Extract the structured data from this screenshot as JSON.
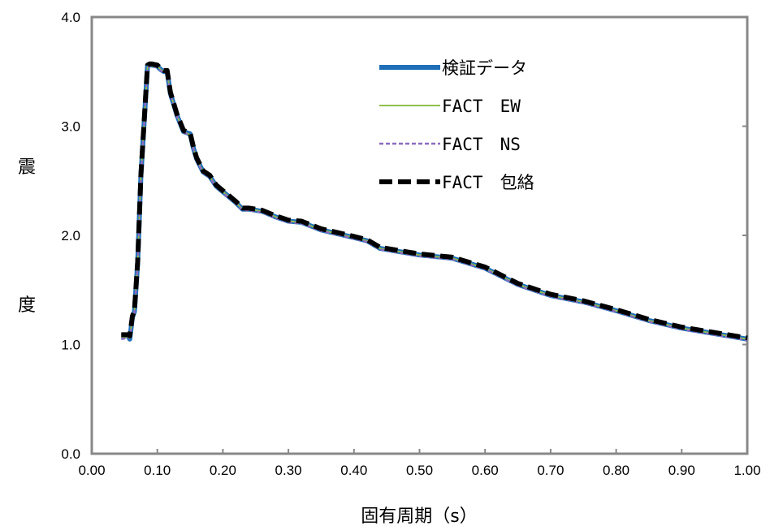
{
  "chart_data": {
    "type": "line",
    "xlabel": "固有周期（s）",
    "ylabel": "震度",
    "xlim": [
      0.0,
      1.0
    ],
    "ylim": [
      0.0,
      4.0
    ],
    "x_ticks": [
      "0.00",
      "0.10",
      "0.20",
      "0.30",
      "0.40",
      "0.50",
      "0.60",
      "0.70",
      "0.80",
      "0.90",
      "1.00"
    ],
    "y_ticks": [
      "0.0",
      "1.0",
      "2.0",
      "3.0",
      "4.0"
    ],
    "grid": false,
    "legend_position": "top-right",
    "series": [
      {
        "name": "検証データ",
        "color": "#1f6fb8",
        "style": "solid-thick",
        "x": [
          0.045,
          0.055,
          0.058,
          0.062,
          0.065,
          0.07,
          0.075,
          0.08,
          0.085,
          0.088,
          0.092,
          0.1,
          0.105,
          0.11,
          0.115,
          0.12,
          0.125,
          0.13,
          0.14,
          0.15,
          0.155,
          0.16,
          0.17,
          0.18,
          0.19,
          0.2,
          0.21,
          0.22,
          0.23,
          0.24,
          0.26,
          0.28,
          0.3,
          0.32,
          0.35,
          0.4,
          0.42,
          0.44,
          0.46,
          0.5,
          0.55,
          0.6,
          0.65,
          0.7,
          0.75,
          0.8,
          0.85,
          0.9,
          0.95,
          1.0
        ],
        "y": [
          1.08,
          1.08,
          1.05,
          1.25,
          1.3,
          1.75,
          2.55,
          3.05,
          3.55,
          3.56,
          3.56,
          3.55,
          3.52,
          3.5,
          3.5,
          3.3,
          3.2,
          3.1,
          2.95,
          2.93,
          2.8,
          2.7,
          2.58,
          2.54,
          2.45,
          2.4,
          2.35,
          2.3,
          2.24,
          2.24,
          2.22,
          2.17,
          2.13,
          2.12,
          2.05,
          1.98,
          1.95,
          1.88,
          1.86,
          1.82,
          1.79,
          1.7,
          1.55,
          1.45,
          1.39,
          1.31,
          1.22,
          1.15,
          1.1,
          1.05
        ]
      },
      {
        "name": "FACT　EW",
        "color": "#8fbf4a",
        "style": "solid-thin",
        "x": [
          0.045,
          0.055,
          0.058,
          0.062,
          0.065,
          0.07,
          0.075,
          0.08,
          0.085,
          0.088,
          0.092,
          0.1,
          0.105,
          0.11,
          0.115,
          0.12,
          0.125,
          0.13,
          0.14,
          0.15,
          0.155,
          0.16,
          0.17,
          0.18,
          0.19,
          0.2,
          0.21,
          0.22,
          0.23,
          0.24,
          0.26,
          0.28,
          0.3,
          0.32,
          0.35,
          0.4,
          0.42,
          0.44,
          0.46,
          0.5,
          0.55,
          0.6,
          0.65,
          0.7,
          0.75,
          0.8,
          0.85,
          0.9,
          0.95,
          1.0
        ],
        "y": [
          1.07,
          1.07,
          1.06,
          1.24,
          1.3,
          1.74,
          2.55,
          3.04,
          3.54,
          3.55,
          3.55,
          3.55,
          3.52,
          3.5,
          3.49,
          3.3,
          3.2,
          3.1,
          2.95,
          2.92,
          2.8,
          2.7,
          2.58,
          2.54,
          2.45,
          2.4,
          2.35,
          2.3,
          2.24,
          2.24,
          2.22,
          2.17,
          2.13,
          2.12,
          2.05,
          1.98,
          1.95,
          1.88,
          1.86,
          1.82,
          1.79,
          1.7,
          1.55,
          1.45,
          1.39,
          1.31,
          1.22,
          1.15,
          1.1,
          1.05
        ]
      },
      {
        "name": "FACT　NS",
        "color": "#8b6bbf",
        "style": "dashed-thin",
        "x": [
          0.045,
          0.055,
          0.058,
          0.062,
          0.065,
          0.07,
          0.075,
          0.08,
          0.085,
          0.088,
          0.092,
          0.1,
          0.105,
          0.11,
          0.115,
          0.12,
          0.125,
          0.13,
          0.14,
          0.15,
          0.155,
          0.16,
          0.17,
          0.18,
          0.19,
          0.2,
          0.21,
          0.22,
          0.23,
          0.24,
          0.26,
          0.28,
          0.3,
          0.32,
          0.35,
          0.4,
          0.42,
          0.44,
          0.46,
          0.5,
          0.55,
          0.6,
          0.65,
          0.7,
          0.75,
          0.8,
          0.85,
          0.9,
          0.95,
          1.0
        ],
        "y": [
          1.05,
          1.06,
          1.07,
          1.22,
          1.29,
          1.73,
          2.54,
          3.03,
          3.53,
          3.55,
          3.55,
          3.54,
          3.51,
          3.49,
          3.49,
          3.29,
          3.19,
          3.09,
          2.94,
          2.92,
          2.79,
          2.69,
          2.57,
          2.53,
          2.44,
          2.39,
          2.34,
          2.29,
          2.23,
          2.23,
          2.21,
          2.16,
          2.12,
          2.11,
          2.04,
          1.97,
          1.94,
          1.87,
          1.85,
          1.81,
          1.78,
          1.69,
          1.54,
          1.44,
          1.38,
          1.3,
          1.21,
          1.14,
          1.09,
          1.04
        ]
      },
      {
        "name": "FACT　包絡",
        "color": "#000000",
        "style": "dashed-thick",
        "x": [
          0.045,
          0.055,
          0.058,
          0.062,
          0.065,
          0.07,
          0.075,
          0.08,
          0.085,
          0.088,
          0.092,
          0.1,
          0.105,
          0.11,
          0.115,
          0.12,
          0.125,
          0.13,
          0.14,
          0.15,
          0.155,
          0.16,
          0.17,
          0.18,
          0.19,
          0.2,
          0.21,
          0.22,
          0.23,
          0.24,
          0.26,
          0.28,
          0.3,
          0.32,
          0.35,
          0.4,
          0.42,
          0.44,
          0.46,
          0.5,
          0.55,
          0.6,
          0.65,
          0.7,
          0.75,
          0.8,
          0.85,
          0.9,
          0.95,
          1.0
        ],
        "y": [
          1.09,
          1.09,
          1.08,
          1.26,
          1.31,
          1.76,
          2.56,
          3.06,
          3.56,
          3.57,
          3.57,
          3.56,
          3.53,
          3.51,
          3.51,
          3.31,
          3.21,
          3.11,
          2.96,
          2.94,
          2.81,
          2.71,
          2.59,
          2.55,
          2.46,
          2.41,
          2.36,
          2.31,
          2.25,
          2.25,
          2.23,
          2.18,
          2.14,
          2.13,
          2.06,
          1.99,
          1.96,
          1.89,
          1.87,
          1.83,
          1.8,
          1.71,
          1.56,
          1.46,
          1.4,
          1.32,
          1.23,
          1.16,
          1.11,
          1.06
        ]
      }
    ]
  }
}
